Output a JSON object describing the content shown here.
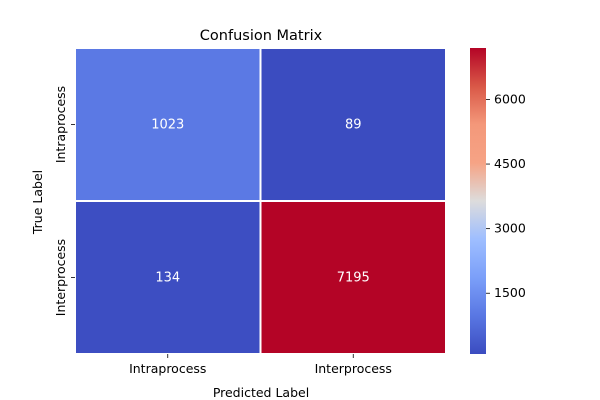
{
  "chart_data": {
    "type": "heatmap",
    "title": "Confusion Matrix",
    "xlabel": "Predicted Label",
    "ylabel": "True Label",
    "x_categories": [
      "Intraprocess",
      "Interprocess"
    ],
    "y_categories": [
      "Intraprocess",
      "Interprocess"
    ],
    "values": [
      [
        1023,
        89
      ],
      [
        134,
        7195
      ]
    ],
    "colormap": "coolwarm",
    "color_range": [
      89,
      7195
    ],
    "colorbar_ticks": [
      1500,
      3000,
      4500,
      6000
    ],
    "cell_border_color": "#ffffff",
    "cell_text_color": "#ffffff"
  }
}
